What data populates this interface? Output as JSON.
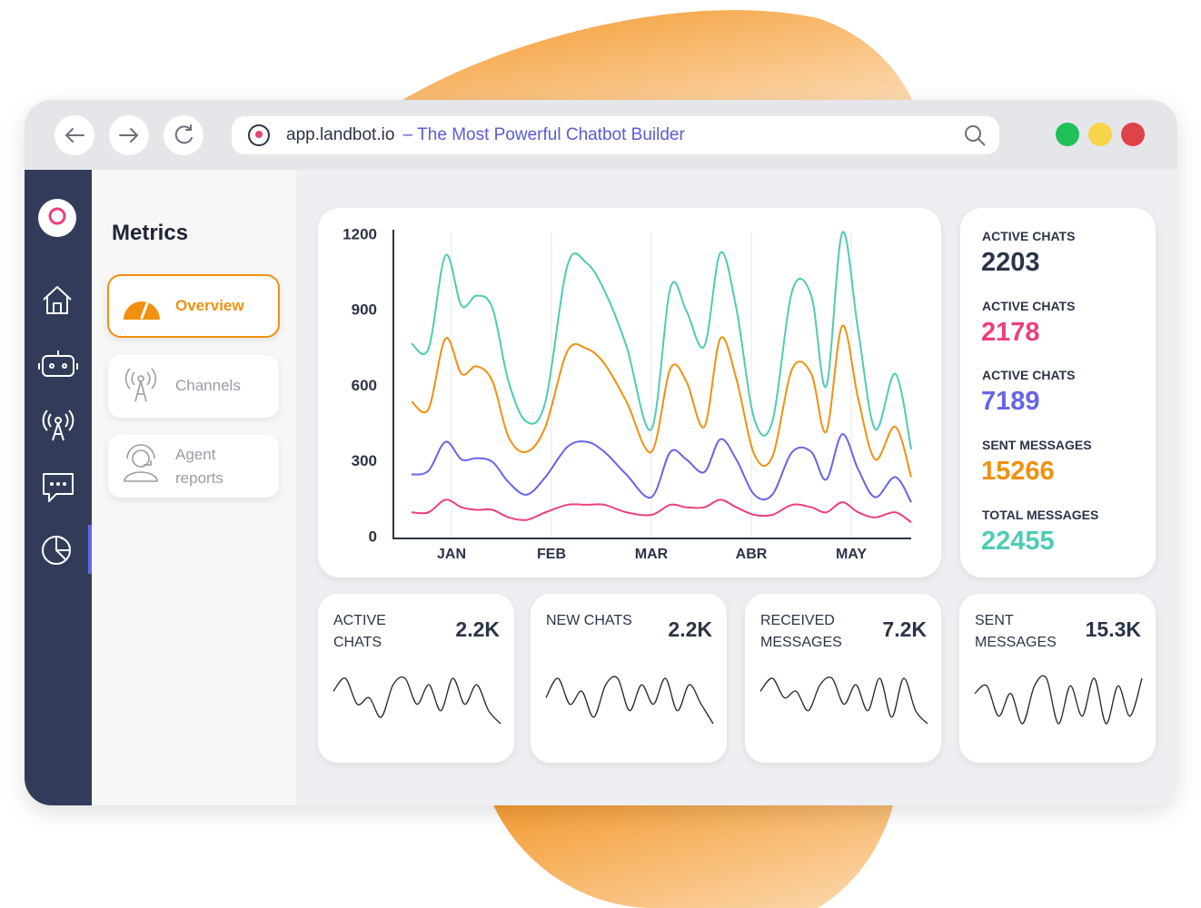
{
  "browser": {
    "url": "app.landbot.io",
    "title": "– The Most Powerful Chatbot Builder"
  },
  "sidebar": {
    "heading": "Metrics",
    "menu": [
      {
        "label": "Overview",
        "active": true
      },
      {
        "label": "Channels",
        "active": false
      },
      {
        "label": "Agent reports",
        "active": false
      }
    ]
  },
  "chart_data": {
    "type": "line",
    "x": [
      -0.4,
      -0.23,
      -0.06,
      0.1,
      0.25,
      0.41,
      0.57,
      0.75,
      0.94,
      1.16,
      1.35,
      1.53,
      1.75,
      2.0,
      2.19,
      2.35,
      2.53,
      2.69,
      2.85,
      3.03,
      3.21,
      3.41,
      3.6,
      3.75,
      3.91,
      4.07,
      4.24,
      4.44,
      4.6
    ],
    "xlim": [
      -0.4,
      4.6
    ],
    "xticks": [
      {
        "value": 0,
        "label": "JAN"
      },
      {
        "value": 1,
        "label": "FEB"
      },
      {
        "value": 2,
        "label": "MAR"
      },
      {
        "value": 3,
        "label": "ABR"
      },
      {
        "value": 4,
        "label": "MAY"
      }
    ],
    "ylim": [
      0,
      1200
    ],
    "yticks": [
      0,
      300,
      600,
      900,
      1200
    ],
    "grid": true,
    "series": [
      {
        "color": "#4ecbb5",
        "values": [
          770,
          750,
          1120,
          920,
          960,
          910,
          620,
          460,
          540,
          1080,
          1090,
          980,
          760,
          430,
          990,
          900,
          760,
          1130,
          910,
          470,
          460,
          980,
          960,
          600,
          1210,
          820,
          430,
          650,
          350
        ]
      },
      {
        "color": "#f2900f",
        "values": [
          540,
          510,
          790,
          650,
          680,
          620,
          400,
          340,
          440,
          740,
          750,
          690,
          540,
          340,
          670,
          620,
          440,
          790,
          630,
          330,
          320,
          670,
          650,
          420,
          840,
          550,
          310,
          440,
          240
        ]
      },
      {
        "color": "#6565e8",
        "values": [
          250,
          265,
          380,
          310,
          315,
          300,
          220,
          170,
          240,
          360,
          380,
          340,
          250,
          160,
          340,
          310,
          260,
          390,
          310,
          170,
          170,
          340,
          340,
          230,
          410,
          270,
          160,
          240,
          140
        ]
      },
      {
        "color": "#ec407a",
        "values": [
          100,
          100,
          150,
          120,
          110,
          110,
          80,
          70,
          100,
          130,
          130,
          130,
          100,
          90,
          130,
          120,
          120,
          150,
          120,
          90,
          90,
          130,
          120,
          100,
          140,
          100,
          80,
          100,
          60
        ]
      }
    ]
  },
  "stats": [
    {
      "label": "ACTIVE CHATS",
      "value": 2203,
      "color": "#2b3447"
    },
    {
      "label": "ACTIVE CHATS",
      "value": 2178,
      "color": "#ec407a"
    },
    {
      "label": "ACTIVE CHATS",
      "value": 7189,
      "color": "#6565e8"
    },
    {
      "label": "SENT MESSAGES",
      "value": 15266,
      "color": "#f2900f"
    },
    {
      "label": "TOTAL MESSAGES",
      "value": 22455,
      "color": "#4ecbb5"
    }
  ],
  "cards": [
    {
      "label": "ACTIVE CHATS",
      "value": "2.2K",
      "sparkline": [
        5,
        7,
        3,
        4,
        1,
        6,
        7,
        3,
        6,
        2,
        7,
        3,
        6,
        2,
        0
      ]
    },
    {
      "label": "NEW CHATS",
      "value": "2.2K",
      "sparkline": [
        4,
        7,
        3,
        5,
        1,
        6,
        7,
        2,
        6,
        3,
        7,
        2,
        6,
        3,
        0
      ]
    },
    {
      "label": "RECEIVED MESSAGES",
      "value": "7.2K",
      "sparkline": [
        5,
        7,
        4,
        5,
        2,
        6,
        7,
        3,
        6,
        2,
        7,
        1,
        7,
        2,
        0
      ]
    },
    {
      "label": "SENT MESSAGES",
      "value": "15.3K",
      "sparkline": [
        5,
        6,
        2,
        5,
        1,
        6,
        7,
        1,
        6,
        2,
        7,
        1,
        6,
        2,
        7
      ]
    }
  ]
}
